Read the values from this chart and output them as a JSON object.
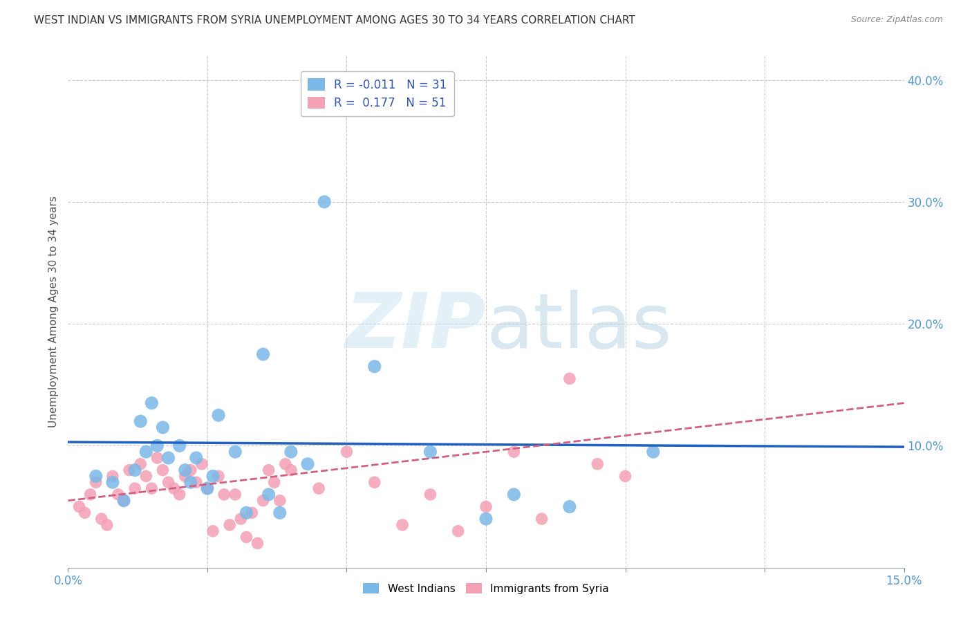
{
  "title": "WEST INDIAN VS IMMIGRANTS FROM SYRIA UNEMPLOYMENT AMONG AGES 30 TO 34 YEARS CORRELATION CHART",
  "source": "Source: ZipAtlas.com",
  "ylabel": "Unemployment Among Ages 30 to 34 years",
  "xlim": [
    0.0,
    0.15
  ],
  "ylim": [
    0.0,
    0.42
  ],
  "legend_r1": "R = -0.011",
  "legend_n1": "N = 31",
  "legend_r2": "R =  0.177",
  "legend_n2": "N = 51",
  "blue_color": "#7ab8e8",
  "pink_color": "#f4a0b5",
  "trend_blue_color": "#2060c0",
  "trend_pink_color": "#d06080",
  "blue_x": [
    0.005,
    0.008,
    0.01,
    0.012,
    0.013,
    0.014,
    0.015,
    0.016,
    0.017,
    0.018,
    0.02,
    0.021,
    0.022,
    0.023,
    0.025,
    0.026,
    0.027,
    0.03,
    0.032,
    0.035,
    0.036,
    0.038,
    0.04,
    0.043,
    0.046,
    0.055,
    0.065,
    0.075,
    0.08,
    0.09,
    0.105
  ],
  "blue_y": [
    0.075,
    0.07,
    0.055,
    0.08,
    0.12,
    0.095,
    0.135,
    0.1,
    0.115,
    0.09,
    0.1,
    0.08,
    0.07,
    0.09,
    0.065,
    0.075,
    0.125,
    0.095,
    0.045,
    0.175,
    0.06,
    0.045,
    0.095,
    0.085,
    0.3,
    0.165,
    0.095,
    0.04,
    0.06,
    0.05,
    0.095
  ],
  "pink_x": [
    0.002,
    0.003,
    0.004,
    0.005,
    0.006,
    0.007,
    0.008,
    0.009,
    0.01,
    0.011,
    0.012,
    0.013,
    0.014,
    0.015,
    0.016,
    0.017,
    0.018,
    0.019,
    0.02,
    0.021,
    0.022,
    0.023,
    0.024,
    0.025,
    0.026,
    0.027,
    0.028,
    0.029,
    0.03,
    0.031,
    0.032,
    0.033,
    0.034,
    0.035,
    0.036,
    0.037,
    0.038,
    0.039,
    0.04,
    0.045,
    0.05,
    0.055,
    0.06,
    0.065,
    0.07,
    0.075,
    0.08,
    0.085,
    0.09,
    0.095,
    0.1
  ],
  "pink_y": [
    0.05,
    0.045,
    0.06,
    0.07,
    0.04,
    0.035,
    0.075,
    0.06,
    0.055,
    0.08,
    0.065,
    0.085,
    0.075,
    0.065,
    0.09,
    0.08,
    0.07,
    0.065,
    0.06,
    0.075,
    0.08,
    0.07,
    0.085,
    0.065,
    0.03,
    0.075,
    0.06,
    0.035,
    0.06,
    0.04,
    0.025,
    0.045,
    0.02,
    0.055,
    0.08,
    0.07,
    0.055,
    0.085,
    0.08,
    0.065,
    0.095,
    0.07,
    0.035,
    0.06,
    0.03,
    0.05,
    0.095,
    0.04,
    0.155,
    0.085,
    0.075
  ],
  "blue_trend_x": [
    0.0,
    0.15
  ],
  "blue_trend_y": [
    0.103,
    0.099
  ],
  "pink_trend_x": [
    0.0,
    0.15
  ],
  "pink_trend_y": [
    0.055,
    0.135
  ],
  "bg_color": "#ffffff",
  "grid_color": "#cccccc",
  "title_color": "#333333",
  "axis_color": "#5599cc"
}
